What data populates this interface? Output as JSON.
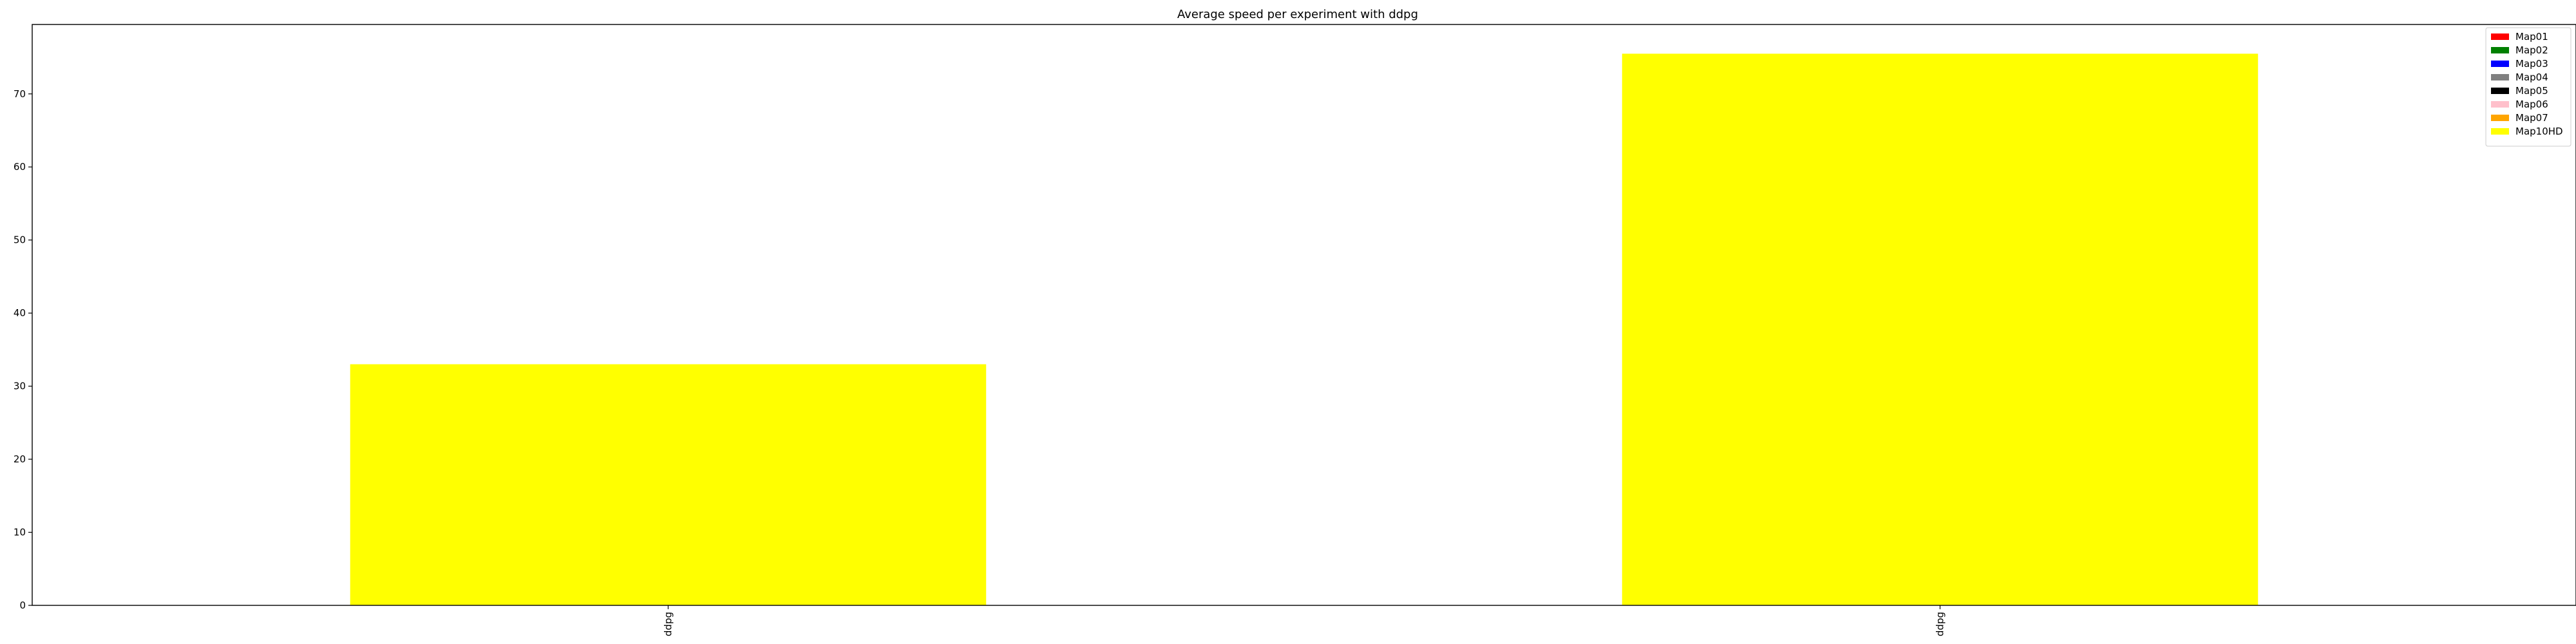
{
  "chart_data": {
    "type": "bar",
    "title": "Average speed per experiment with ddpg",
    "xlabel": "",
    "ylabel": "",
    "categories": [
      "ddpg",
      "ddpg"
    ],
    "values": [
      33,
      75.5
    ],
    "bar_color": "#ffff00",
    "ylim": [
      0,
      79.5
    ],
    "yticks": [
      0,
      10,
      20,
      30,
      40,
      50,
      60,
      70
    ],
    "legend_position": "top-right",
    "grid": false,
    "legend": [
      {
        "name": "Map01",
        "color": "#ff0000"
      },
      {
        "name": "Map02",
        "color": "#008000"
      },
      {
        "name": "Map03",
        "color": "#0000ff"
      },
      {
        "name": "Map04",
        "color": "#808080"
      },
      {
        "name": "Map05",
        "color": "#000000"
      },
      {
        "name": "Map06",
        "color": "#ffc0cb"
      },
      {
        "name": "Map07",
        "color": "#ffa500"
      },
      {
        "name": "Map10HD",
        "color": "#ffff00"
      }
    ]
  }
}
